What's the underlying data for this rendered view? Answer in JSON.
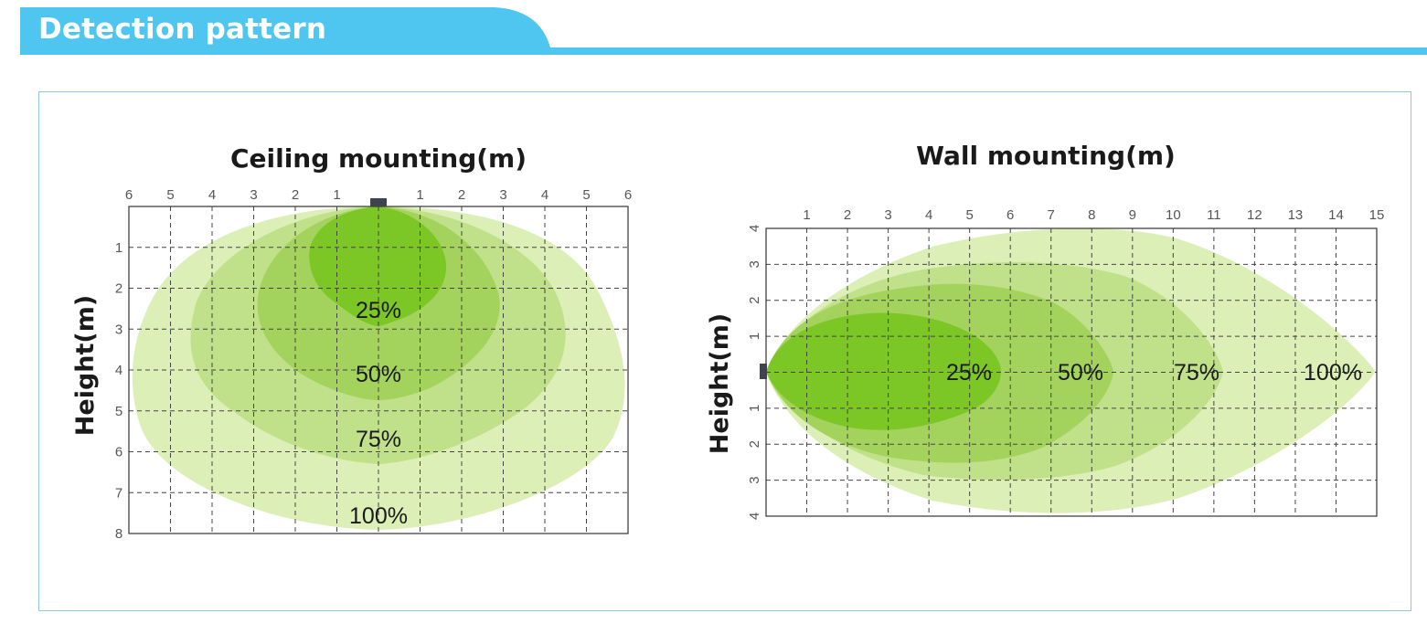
{
  "header": {
    "title": "Detection pattern"
  },
  "colors": {
    "header": "#4ec6f0",
    "zone_100": "#dcefb7",
    "zone_75": "#c0e18a",
    "zone_50": "#a3d35c",
    "zone_25": "#7cc626",
    "sensor": "#3d4450",
    "panel_border": "#8fc8d8"
  },
  "chart_data": [
    {
      "type": "diagram",
      "title": "Ceiling mounting(m)",
      "ylabel": "Height(m)",
      "x_ticks": [
        "6",
        "5",
        "4",
        "3",
        "2",
        "1",
        "",
        "1",
        "2",
        "3",
        "4",
        "5",
        "6"
      ],
      "y_ticks": [
        "1",
        "2",
        "3",
        "4",
        "5",
        "6",
        "7",
        "8"
      ],
      "xlim": [
        -6,
        6
      ],
      "ylim": [
        0,
        8
      ],
      "zones": [
        {
          "label": "100%",
          "percent": 100
        },
        {
          "label": "75%",
          "percent": 75
        },
        {
          "label": "50%",
          "percent": 50
        },
        {
          "label": "25%",
          "percent": 25
        }
      ]
    },
    {
      "type": "diagram",
      "title": "Wall mounting(m)",
      "ylabel": "Height(m)",
      "x_ticks": [
        "1",
        "2",
        "3",
        "4",
        "5",
        "6",
        "7",
        "8",
        "9",
        "10",
        "11",
        "12",
        "13",
        "14",
        "15"
      ],
      "y_ticks": [
        "4",
        "3",
        "2",
        "1",
        "",
        "1",
        "2",
        "3",
        "4"
      ],
      "xlim": [
        0,
        15
      ],
      "ylim": [
        -4,
        4
      ],
      "zones": [
        {
          "label": "25%",
          "percent": 25
        },
        {
          "label": "50%",
          "percent": 50
        },
        {
          "label": "75%",
          "percent": 75
        },
        {
          "label": "100%",
          "percent": 100
        }
      ]
    }
  ]
}
